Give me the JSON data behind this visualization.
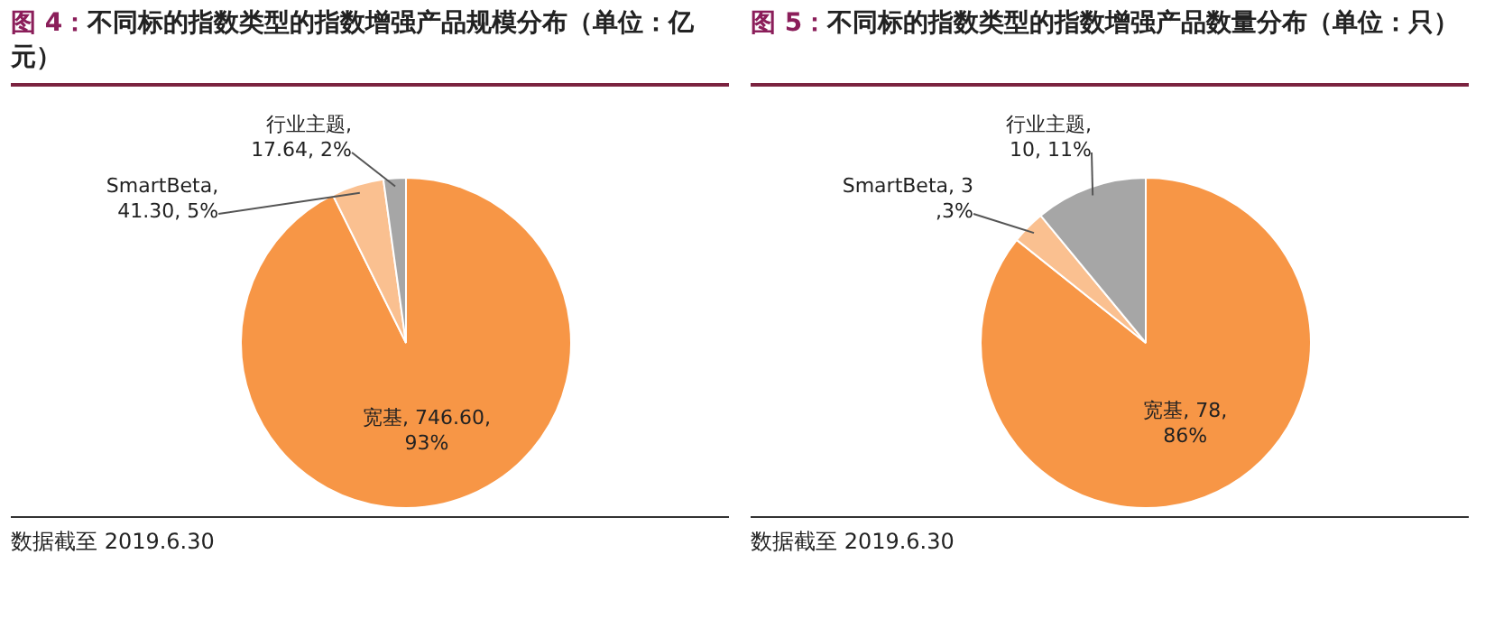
{
  "chart_data": [
    {
      "type": "pie",
      "title": "图 4：不同标的指数类型的指数增强产品规模分布（单位：亿元）",
      "categories": [
        "宽基",
        "SmartBeta",
        "行业主题"
      ],
      "values": [
        746.6,
        41.3,
        17.64
      ],
      "colors": [
        "#f79646",
        "#fac090",
        "#a6a6a6"
      ],
      "value_labels": [
        ", 746.60,\n93%",
        ",\n41.30, 5%",
        ",\n17.64, 2%"
      ],
      "legend": false,
      "annotations": [
        "数据截至 2019.6.30"
      ]
    },
    {
      "type": "pie",
      "title": "图 5：不同标的指数类型的指数增强产品数量分布（单位：只）",
      "categories": [
        "宽基",
        "SmartBeta",
        "行业主题"
      ],
      "values": [
        78,
        3,
        10
      ],
      "colors": [
        "#f79646",
        "#fac090",
        "#a6a6a6"
      ],
      "value_labels": [
        ", 78,\n86%",
        ", 3\n,3%",
        ",\n10, 11%"
      ],
      "legend": false,
      "annotations": [
        "数据截至 2019.6.30"
      ]
    }
  ]
}
